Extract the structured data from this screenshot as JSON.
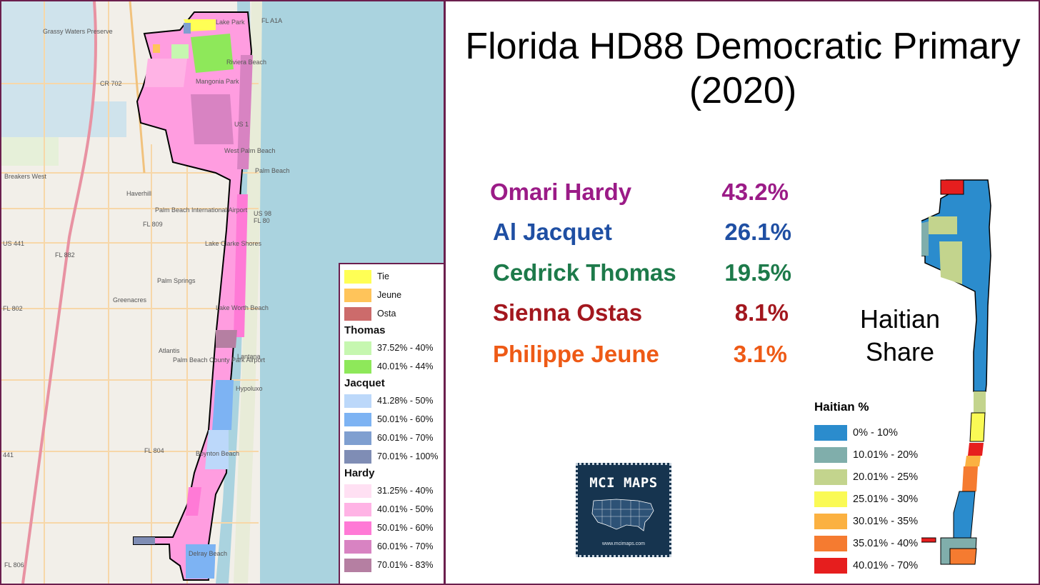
{
  "title": "Florida HD88 Democratic Primary (2020)",
  "results": [
    {
      "name": "Omari Hardy",
      "pct": "43.2%",
      "color": "#9b1b87"
    },
    {
      "name": "Al Jacquet",
      "pct": "26.1%",
      "color": "#1f4fa3"
    },
    {
      "name": "Cedrick Thomas",
      "pct": "19.5%",
      "color": "#1d7a4a"
    },
    {
      "name": "Sienna Ostas",
      "pct": "8.1%",
      "color": "#a3171e"
    },
    {
      "name": "Philippe Jeune",
      "pct": "3.1%",
      "color": "#ee5a16"
    }
  ],
  "map_labels": {
    "grassy_waters": "Grassy Waters Preserve",
    "lake_park": "Lake Park",
    "riviera_beach": "Riviera Beach",
    "mangonia_park": "Mangonia Park",
    "west_palm_beach": "West Palm Beach",
    "palm_beach": "Palm Beach",
    "breakers_west": "Breakers West",
    "haverhill": "Haverhill",
    "pbi_airport": "Palm Beach International Airport",
    "lake_clarke_shores": "Lake Clarke Shores",
    "palm_springs": "Palm Springs",
    "greenacres": "Greenacres",
    "lake_worth_beach": "Lake Worth Beach",
    "atlantis": "Atlantis",
    "county_park_airport": "Palm Beach County Park Airport",
    "lantana": "Lantana",
    "hypoluxo": "Hypoluxo",
    "boynton_beach": "Boynton Beach",
    "delray_beach": "Delray Beach",
    "roads": [
      "FL A1A",
      "CR 702",
      "US 1",
      "US 98",
      "FL 80",
      "FL 809",
      "FL 882",
      "FL 802",
      "FL 804",
      "FL 806",
      "US 441",
      "441"
    ]
  },
  "legend": {
    "basic": [
      {
        "label": "Tie",
        "color": "#ffff55"
      },
      {
        "label": "Jeune",
        "color": "#ffc45a"
      },
      {
        "label": "Osta",
        "color": "#cc6b6b"
      }
    ],
    "groups": [
      {
        "name": "Thomas",
        "items": [
          {
            "label": "37.52% - 40%",
            "color": "#c6f7b0"
          },
          {
            "label": "40.01% - 44%",
            "color": "#8ee85a"
          }
        ]
      },
      {
        "name": "Jacquet",
        "items": [
          {
            "label": "41.28% - 50%",
            "color": "#bcd8fa"
          },
          {
            "label": "50.01% - 60%",
            "color": "#7db3f3"
          },
          {
            "label": "60.01% - 70%",
            "color": "#7f9fd0"
          },
          {
            "label": "70.01% - 100%",
            "color": "#7f8db5"
          }
        ]
      },
      {
        "name": "Hardy",
        "items": [
          {
            "label": "31.25% - 40%",
            "color": "#ffe0f3"
          },
          {
            "label": "40.01% - 50%",
            "color": "#ffb3e5"
          },
          {
            "label": "50.01% - 60%",
            "color": "#ff7ad6"
          },
          {
            "label": "60.01% - 70%",
            "color": "#d883c2"
          },
          {
            "label": "70.01% - 83%",
            "color": "#b57fa2"
          }
        ]
      }
    ]
  },
  "haitian": {
    "title": "Haitian Share",
    "legend_title": "Haitian %",
    "bins": [
      {
        "label": "0% - 10%",
        "color": "#2b8ccd"
      },
      {
        "label": "10.01% - 20%",
        "color": "#80aeab"
      },
      {
        "label": "20.01% - 25%",
        "color": "#c3d48d"
      },
      {
        "label": "25.01% - 30%",
        "color": "#fafa55"
      },
      {
        "label": "30.01% - 35%",
        "color": "#fbb141"
      },
      {
        "label": "35.01% - 40%",
        "color": "#f57b30"
      },
      {
        "label": "40.01% - 70%",
        "color": "#e61e1e"
      }
    ]
  },
  "logo": {
    "text": "MCI MAPS",
    "url": "www.mcimaps.com"
  }
}
